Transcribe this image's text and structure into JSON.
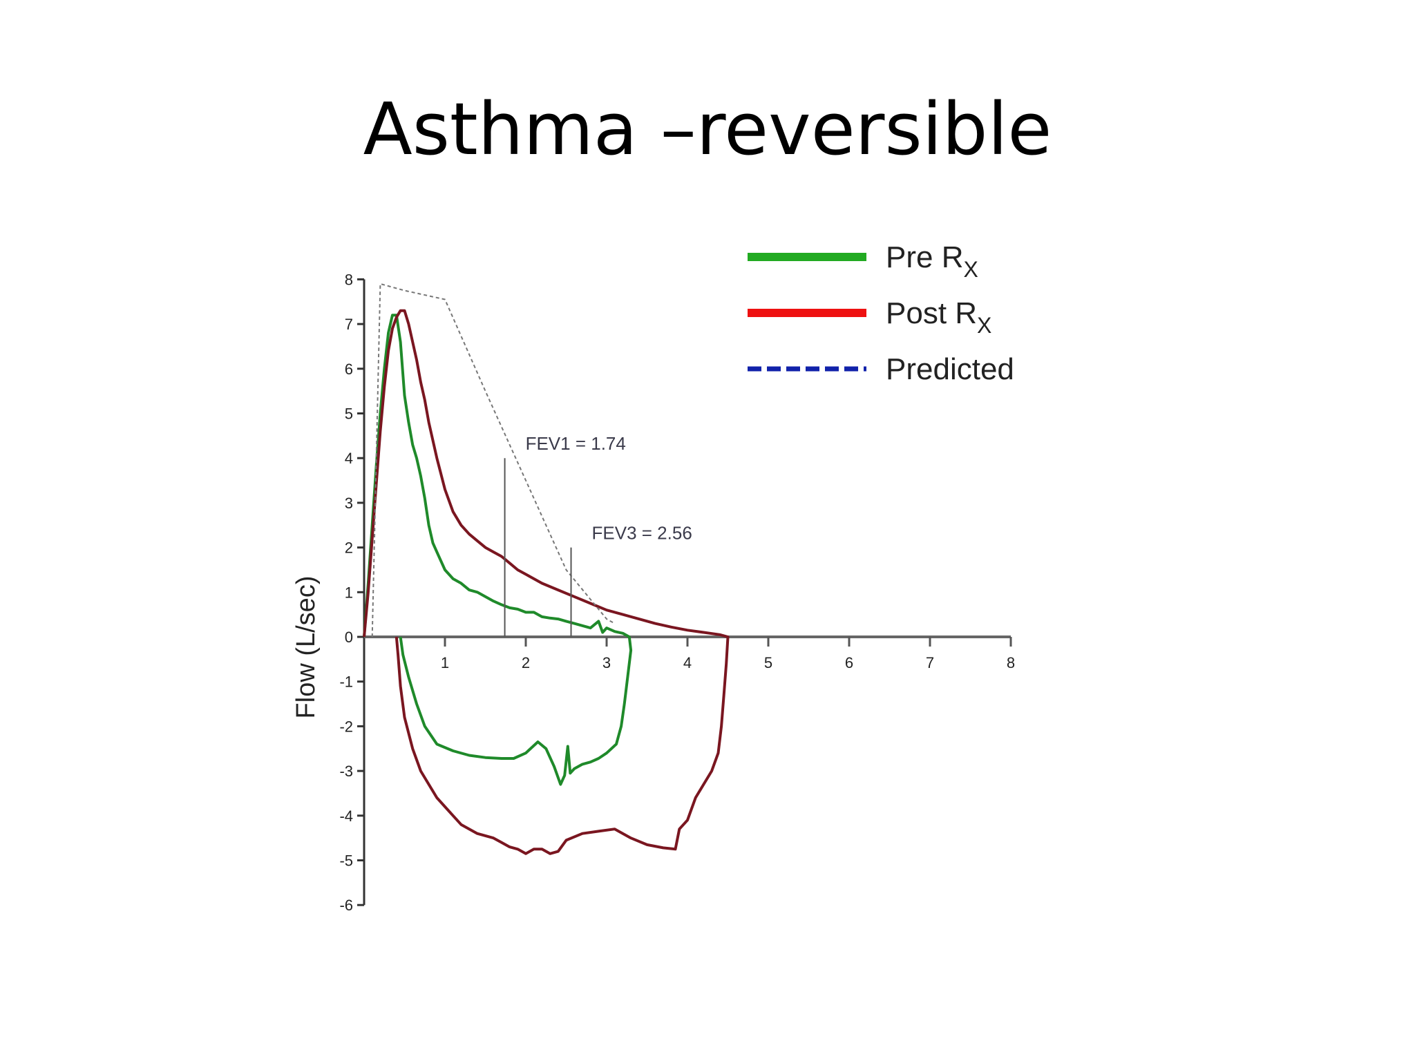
{
  "slide": {
    "title": "Asthma –reversible"
  },
  "colors": {
    "pre": "#1f8a2a",
    "post": "#7a1620",
    "post_legend": "#ee1111",
    "pre_legend": "#22aa22",
    "predicted": "#777777",
    "predicted_legend": "#1122aa"
  },
  "chart_data": {
    "type": "line",
    "title": "",
    "xlabel": "",
    "ylabel": "Flow  (L/sec)",
    "xlim": [
      0,
      8
    ],
    "ylim": [
      -6,
      8
    ],
    "x_ticks": [
      1,
      2,
      3,
      4,
      5,
      6,
      7,
      8
    ],
    "y_ticks": [
      8,
      7,
      6,
      5,
      4,
      3,
      2,
      1,
      0,
      -1,
      -2,
      -3,
      -4,
      -5,
      -6
    ],
    "legend": {
      "placement": "top-right",
      "entries": [
        {
          "label": "Pre R",
          "sub": "X",
          "style": "solid",
          "color_key": "pre_legend"
        },
        {
          "label": "Post R",
          "sub": "X",
          "style": "solid",
          "color_key": "post_legend"
        },
        {
          "label": "Predicted",
          "sub": "",
          "style": "dashed",
          "color_key": "predicted_legend"
        }
      ]
    },
    "annotations": [
      {
        "text": "FEV1 = 1.74",
        "x": 1.74,
        "y_top": 4.0
      },
      {
        "text": "FEV3 = 2.56",
        "x": 2.56,
        "y_top": 2.0
      }
    ],
    "series": [
      {
        "name": "Pre R",
        "color_key": "pre",
        "points": [
          [
            0,
            0
          ],
          [
            0.05,
            1.2
          ],
          [
            0.1,
            2.5
          ],
          [
            0.15,
            3.8
          ],
          [
            0.2,
            5.0
          ],
          [
            0.25,
            6.0
          ],
          [
            0.3,
            6.8
          ],
          [
            0.35,
            7.2
          ],
          [
            0.4,
            7.2
          ],
          [
            0.45,
            6.6
          ],
          [
            0.5,
            5.4
          ],
          [
            0.55,
            4.8
          ],
          [
            0.6,
            4.3
          ],
          [
            0.65,
            4.0
          ],
          [
            0.7,
            3.6
          ],
          [
            0.75,
            3.1
          ],
          [
            0.8,
            2.5
          ],
          [
            0.85,
            2.1
          ],
          [
            0.9,
            1.9
          ],
          [
            1.0,
            1.5
          ],
          [
            1.1,
            1.3
          ],
          [
            1.2,
            1.2
          ],
          [
            1.3,
            1.05
          ],
          [
            1.4,
            1.0
          ],
          [
            1.5,
            0.9
          ],
          [
            1.6,
            0.8
          ],
          [
            1.7,
            0.72
          ],
          [
            1.8,
            0.65
          ],
          [
            1.9,
            0.62
          ],
          [
            2.0,
            0.55
          ],
          [
            2.1,
            0.55
          ],
          [
            2.2,
            0.45
          ],
          [
            2.3,
            0.42
          ],
          [
            2.4,
            0.4
          ],
          [
            2.5,
            0.35
          ],
          [
            2.6,
            0.3
          ],
          [
            2.7,
            0.25
          ],
          [
            2.8,
            0.2
          ],
          [
            2.9,
            0.35
          ],
          [
            2.95,
            0.1
          ],
          [
            3.0,
            0.2
          ],
          [
            3.1,
            0.12
          ],
          [
            3.2,
            0.08
          ],
          [
            3.28,
            0.0
          ],
          [
            3.3,
            -0.3
          ],
          [
            3.26,
            -0.9
          ],
          [
            3.22,
            -1.5
          ],
          [
            3.18,
            -2.0
          ],
          [
            3.12,
            -2.4
          ],
          [
            3.0,
            -2.6
          ],
          [
            2.9,
            -2.72
          ],
          [
            2.8,
            -2.8
          ],
          [
            2.7,
            -2.85
          ],
          [
            2.6,
            -2.95
          ],
          [
            2.55,
            -3.05
          ],
          [
            2.52,
            -2.45
          ],
          [
            2.48,
            -3.1
          ],
          [
            2.43,
            -3.3
          ],
          [
            2.35,
            -2.9
          ],
          [
            2.25,
            -2.5
          ],
          [
            2.15,
            -2.35
          ],
          [
            2.0,
            -2.6
          ],
          [
            1.85,
            -2.72
          ],
          [
            1.7,
            -2.72
          ],
          [
            1.5,
            -2.7
          ],
          [
            1.3,
            -2.65
          ],
          [
            1.1,
            -2.55
          ],
          [
            0.9,
            -2.4
          ],
          [
            0.75,
            -2.0
          ],
          [
            0.65,
            -1.5
          ],
          [
            0.55,
            -0.9
          ],
          [
            0.48,
            -0.4
          ],
          [
            0.45,
            0.0
          ]
        ]
      },
      {
        "name": "Post R",
        "color_key": "post",
        "points": [
          [
            0,
            0
          ],
          [
            0.05,
            1.0
          ],
          [
            0.1,
            2.2
          ],
          [
            0.15,
            3.4
          ],
          [
            0.2,
            4.6
          ],
          [
            0.25,
            5.6
          ],
          [
            0.3,
            6.4
          ],
          [
            0.35,
            6.9
          ],
          [
            0.4,
            7.15
          ],
          [
            0.45,
            7.3
          ],
          [
            0.5,
            7.3
          ],
          [
            0.55,
            7.0
          ],
          [
            0.6,
            6.6
          ],
          [
            0.65,
            6.2
          ],
          [
            0.7,
            5.7
          ],
          [
            0.75,
            5.3
          ],
          [
            0.8,
            4.8
          ],
          [
            0.9,
            4.0
          ],
          [
            1.0,
            3.3
          ],
          [
            1.1,
            2.8
          ],
          [
            1.2,
            2.5
          ],
          [
            1.3,
            2.3
          ],
          [
            1.4,
            2.15
          ],
          [
            1.5,
            2.0
          ],
          [
            1.6,
            1.9
          ],
          [
            1.7,
            1.8
          ],
          [
            1.8,
            1.65
          ],
          [
            1.9,
            1.5
          ],
          [
            2.0,
            1.4
          ],
          [
            2.2,
            1.2
          ],
          [
            2.4,
            1.05
          ],
          [
            2.6,
            0.9
          ],
          [
            2.8,
            0.75
          ],
          [
            3.0,
            0.6
          ],
          [
            3.2,
            0.5
          ],
          [
            3.4,
            0.4
          ],
          [
            3.6,
            0.3
          ],
          [
            3.8,
            0.22
          ],
          [
            4.0,
            0.15
          ],
          [
            4.2,
            0.1
          ],
          [
            4.4,
            0.05
          ],
          [
            4.5,
            0.0
          ],
          [
            4.48,
            -0.6
          ],
          [
            4.45,
            -1.3
          ],
          [
            4.42,
            -2.0
          ],
          [
            4.38,
            -2.6
          ],
          [
            4.3,
            -3.0
          ],
          [
            4.2,
            -3.3
          ],
          [
            4.1,
            -3.6
          ],
          [
            4.0,
            -4.1
          ],
          [
            3.9,
            -4.3
          ],
          [
            3.85,
            -4.75
          ],
          [
            3.7,
            -4.72
          ],
          [
            3.5,
            -4.65
          ],
          [
            3.3,
            -4.5
          ],
          [
            3.1,
            -4.3
          ],
          [
            2.9,
            -4.35
          ],
          [
            2.7,
            -4.4
          ],
          [
            2.5,
            -4.55
          ],
          [
            2.4,
            -4.8
          ],
          [
            2.3,
            -4.85
          ],
          [
            2.2,
            -4.75
          ],
          [
            2.1,
            -4.75
          ],
          [
            2.0,
            -4.85
          ],
          [
            1.9,
            -4.75
          ],
          [
            1.8,
            -4.7
          ],
          [
            1.7,
            -4.6
          ],
          [
            1.6,
            -4.5
          ],
          [
            1.5,
            -4.45
          ],
          [
            1.4,
            -4.4
          ],
          [
            1.3,
            -4.3
          ],
          [
            1.2,
            -4.2
          ],
          [
            1.1,
            -4.0
          ],
          [
            1.0,
            -3.8
          ],
          [
            0.9,
            -3.6
          ],
          [
            0.8,
            -3.3
          ],
          [
            0.7,
            -3.0
          ],
          [
            0.6,
            -2.5
          ],
          [
            0.5,
            -1.8
          ],
          [
            0.45,
            -1.1
          ],
          [
            0.42,
            -0.4
          ],
          [
            0.4,
            0.0
          ]
        ]
      },
      {
        "name": "Predicted",
        "color_key": "predicted",
        "points": [
          [
            0.1,
            0.0
          ],
          [
            0.2,
            7.9
          ],
          [
            0.5,
            7.75
          ],
          [
            1.0,
            7.55
          ],
          [
            1.5,
            5.5
          ],
          [
            2.0,
            3.5
          ],
          [
            2.5,
            1.5
          ],
          [
            3.0,
            0.4
          ],
          [
            3.1,
            0.3
          ]
        ]
      }
    ]
  }
}
